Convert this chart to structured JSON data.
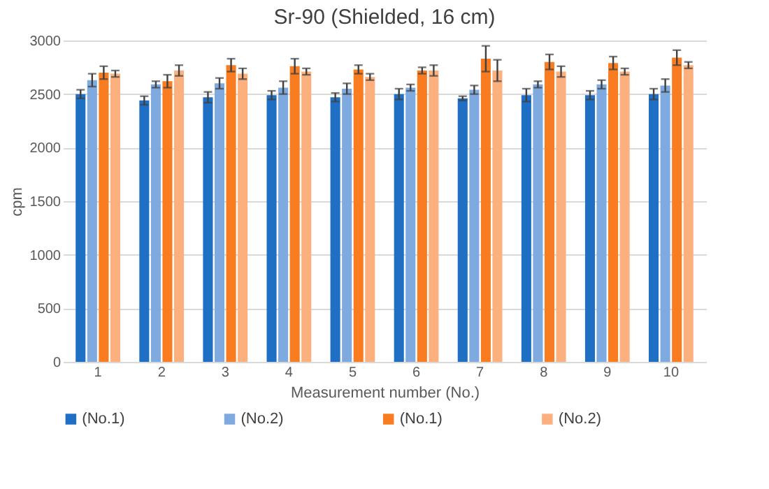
{
  "chart_data": {
    "type": "bar",
    "title": "Sr-90 (Shielded, 16 cm)",
    "xlabel": "Measurement number (No.)",
    "ylabel": "cpm",
    "categories": [
      "1",
      "2",
      "3",
      "4",
      "5",
      "6",
      "7",
      "8",
      "9",
      "10"
    ],
    "series": [
      {
        "name": "(No.1)",
        "color": "#1f6fc5",
        "values": [
          2500,
          2440,
          2470,
          2490,
          2470,
          2500,
          2460,
          2490,
          2490,
          2500
        ],
        "errors": [
          40,
          40,
          50,
          40,
          40,
          50,
          20,
          60,
          40,
          50
        ]
      },
      {
        "name": "(No.2)",
        "color": "#7faadf",
        "values": [
          2630,
          2590,
          2600,
          2560,
          2550,
          2560,
          2540,
          2590,
          2590,
          2580
        ],
        "errors": [
          60,
          30,
          50,
          60,
          50,
          30,
          40,
          30,
          40,
          60
        ]
      },
      {
        "name": "(No.1)",
        "color": "#f97d20",
        "values": [
          2700,
          2620,
          2770,
          2760,
          2730,
          2720,
          2830,
          2800,
          2790,
          2840
        ],
        "errors": [
          60,
          60,
          60,
          70,
          40,
          30,
          120,
          70,
          60,
          70
        ]
      },
      {
        "name": "(No.2)",
        "color": "#fcb07e",
        "values": [
          2690,
          2720,
          2690,
          2710,
          2660,
          2720,
          2720,
          2710,
          2710,
          2770
        ],
        "errors": [
          30,
          50,
          50,
          30,
          30,
          50,
          100,
          50,
          30,
          30
        ]
      }
    ],
    "ylim": [
      0,
      3000
    ],
    "yticks": [
      0,
      500,
      1000,
      1500,
      2000,
      2500,
      3000
    ],
    "grid": "y",
    "legend": "bottom"
  }
}
